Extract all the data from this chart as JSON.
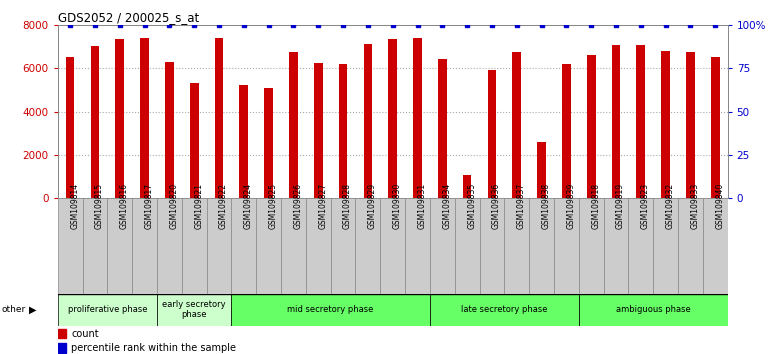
{
  "title": "GDS2052 / 200025_s_at",
  "samples": [
    "GSM109814",
    "GSM109815",
    "GSM109816",
    "GSM109817",
    "GSM109820",
    "GSM109821",
    "GSM109822",
    "GSM109824",
    "GSM109825",
    "GSM109826",
    "GSM109827",
    "GSM109828",
    "GSM109829",
    "GSM109830",
    "GSM109831",
    "GSM109834",
    "GSM109835",
    "GSM109836",
    "GSM109837",
    "GSM109838",
    "GSM109839",
    "GSM109818",
    "GSM109819",
    "GSM109823",
    "GSM109832",
    "GSM109833",
    "GSM109840"
  ],
  "counts": [
    6500,
    7000,
    7350,
    7400,
    6300,
    5300,
    7400,
    5200,
    5100,
    6750,
    6250,
    6200,
    7100,
    7350,
    7400,
    6400,
    1050,
    5900,
    6750,
    2600,
    6200,
    6600,
    7050,
    7050,
    6800,
    6750,
    6500
  ],
  "percentile": [
    100,
    100,
    100,
    100,
    100,
    100,
    100,
    100,
    100,
    100,
    100,
    100,
    100,
    100,
    100,
    100,
    100,
    100,
    100,
    100,
    100,
    100,
    100,
    100,
    100,
    100,
    100
  ],
  "bar_color": "#cc0000",
  "dot_color": "#0000cc",
  "ylim_left": [
    0,
    8000
  ],
  "ylim_right": [
    0,
    100
  ],
  "yticks_left": [
    0,
    2000,
    4000,
    6000,
    8000
  ],
  "yticks_right": [
    0,
    25,
    50,
    75,
    100
  ],
  "ytick_labels_right": [
    "0",
    "25",
    "50",
    "75",
    "100%"
  ],
  "phases": [
    {
      "label": "proliferative phase",
      "start": 0,
      "end": 4,
      "color": "#ccffcc"
    },
    {
      "label": "early secretory\nphase",
      "start": 4,
      "end": 7,
      "color": "#ccffcc"
    },
    {
      "label": "mid secretory phase",
      "start": 7,
      "end": 15,
      "color": "#66ff66"
    },
    {
      "label": "late secretory phase",
      "start": 15,
      "end": 21,
      "color": "#66ff66"
    },
    {
      "label": "ambiguous phase",
      "start": 21,
      "end": 27,
      "color": "#66ff66"
    }
  ],
  "other_label": "other",
  "legend_count_label": "count",
  "legend_pct_label": "percentile rank within the sample",
  "background_color": "#ffffff",
  "grid_color": "#aaaaaa",
  "tick_label_color_left": "#cc0000",
  "tick_label_color_right": "#0000cc",
  "cell_bg_color": "#cccccc"
}
